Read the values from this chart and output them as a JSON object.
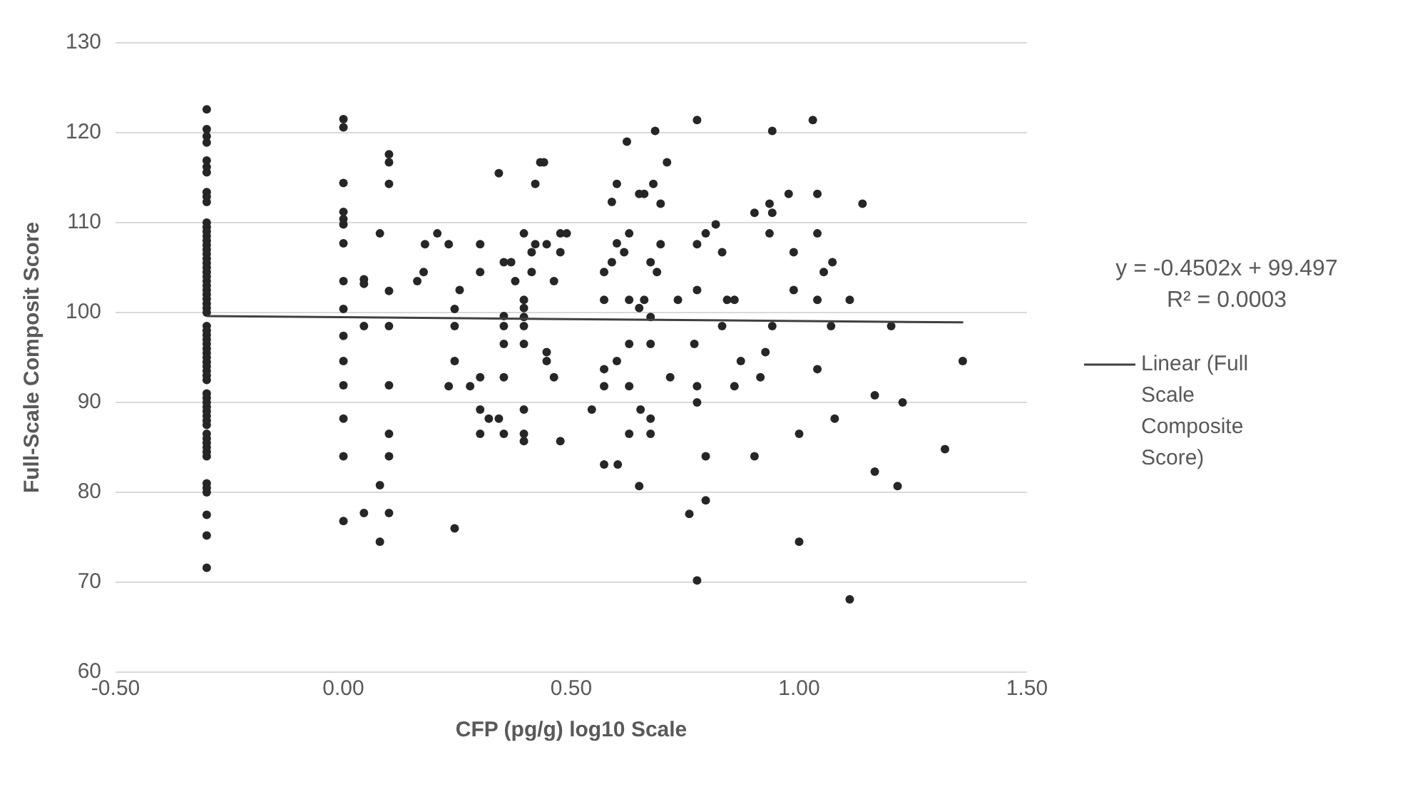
{
  "chart_data": {
    "type": "scatter",
    "xlabel": "CFP (pg/g) log10 Scale",
    "ylabel": "Full-Scale Composit Score",
    "xlim": [
      -0.5,
      1.5
    ],
    "xticks": [
      {
        "value": -0.5,
        "label": "-0.50"
      },
      {
        "value": 0,
        "label": "0.00"
      },
      {
        "value": 0.5,
        "label": "0.50"
      },
      {
        "value": 1,
        "label": "1.00"
      },
      {
        "value": 1.5,
        "label": "1.50"
      }
    ],
    "ylim": [
      60,
      130
    ],
    "yticks": [
      60,
      70,
      80,
      90,
      100,
      110,
      120,
      130
    ],
    "grid": "y",
    "legend": "right",
    "annotations": [
      "y = -0.4502x + 99.497",
      "R² = 0.0003"
    ],
    "series": [
      {
        "type": "scatter",
        "color": "#262626",
        "marker": "circle",
        "x": [
          -0.3,
          -0.3,
          -0.3,
          -0.3,
          -0.3,
          -0.3,
          -0.3,
          -0.3,
          -0.3,
          -0.3,
          -0.3,
          -0.3,
          -0.3,
          -0.3,
          -0.3,
          -0.3,
          -0.3,
          -0.3,
          -0.3,
          -0.3,
          -0.3,
          -0.3,
          -0.3,
          -0.3,
          -0.3,
          -0.3,
          -0.3,
          -0.3,
          -0.3,
          -0.3,
          -0.3,
          -0.3,
          -0.3,
          -0.3,
          -0.3,
          -0.3,
          -0.3,
          -0.3,
          -0.3,
          -0.3,
          -0.3,
          -0.3,
          -0.3,
          -0.3,
          -0.3,
          -0.3,
          -0.3,
          -0.3,
          -0.3,
          -0.3,
          -0.3,
          -0.3,
          -0.3,
          -0.3,
          -0.3,
          -0.3,
          -0.3,
          -0.3,
          -0.3,
          -0.3,
          -0.3,
          -0.3,
          -0.3,
          -0.3,
          0,
          0,
          0,
          0,
          0,
          0,
          0,
          0,
          0,
          0,
          0,
          0,
          0,
          0,
          0,
          0.045,
          0.045,
          0.045,
          0.045,
          0.08,
          0.08,
          0.08,
          0.1,
          0.1,
          0.1,
          0.1,
          0.1,
          0.1,
          0.1,
          0.1,
          0.1,
          0.162,
          0.176,
          0.179,
          0.206,
          0.231,
          0.231,
          0.244,
          0.244,
          0.244,
          0.244,
          0.255,
          0.278,
          0.3,
          0.3,
          0.3,
          0.3,
          0.3,
          0.319,
          0.341,
          0.341,
          0.352,
          0.368,
          0.352,
          0.352,
          0.352,
          0.352,
          0.352,
          0.377,
          0.396,
          0.396,
          0.396,
          0.396,
          0.396,
          0.396,
          0.396,
          0.396,
          0.396,
          0.413,
          0.413,
          0.421,
          0.421,
          0.432,
          0.44,
          0.446,
          0.446,
          0.446,
          0.462,
          0.462,
          0.476,
          0.476,
          0.476,
          0.49,
          0.545,
          0.572,
          0.572,
          0.572,
          0.572,
          0.572,
          0.589,
          0.589,
          0.6,
          0.6,
          0.6,
          0.602,
          0.616,
          0.622,
          0.627,
          0.627,
          0.627,
          0.627,
          0.627,
          0.649,
          0.649,
          0.649,
          0.66,
          0.66,
          0.652,
          0.674,
          0.674,
          0.674,
          0.674,
          0.674,
          0.68,
          0.684,
          0.688,
          0.696,
          0.696,
          0.71,
          0.717,
          0.734,
          0.759,
          0.77,
          0.776,
          0.776,
          0.776,
          0.776,
          0.776,
          0.776,
          0.795,
          0.795,
          0.795,
          0.817,
          0.831,
          0.831,
          0.842,
          0.858,
          0.858,
          0.872,
          0.902,
          0.902,
          0.915,
          0.926,
          0.935,
          0.935,
          0.941,
          0.941,
          0.941,
          0.977,
          0.988,
          0.988,
          1,
          1,
          1.03,
          1.04,
          1.04,
          1.04,
          1.04,
          1.054,
          1.073,
          1.07,
          1.078,
          1.111,
          1.111,
          1.139,
          1.166,
          1.166,
          1.202,
          1.216,
          1.227,
          1.32,
          1.359
        ],
        "values": [
          122.6,
          120.4,
          119.6,
          118.9,
          116.9,
          116.2,
          115.6,
          113.4,
          112.9,
          112.3,
          110,
          109.5,
          109,
          108.5,
          108,
          107.5,
          107,
          106.5,
          106,
          105.5,
          105,
          104.5,
          104,
          103.5,
          103,
          102.5,
          102,
          101.5,
          101,
          100.5,
          100,
          98.5,
          98,
          97.5,
          97,
          96.5,
          96,
          95.5,
          95,
          94.5,
          94,
          93.5,
          93,
          92.5,
          91,
          90.5,
          90,
          89.5,
          89,
          88.5,
          88,
          87.5,
          86.5,
          86,
          85.5,
          85,
          84.5,
          84,
          81,
          80.5,
          80,
          77.5,
          75.2,
          71.6,
          121.5,
          120.6,
          114.4,
          111.2,
          110.4,
          109.8,
          107.7,
          103.5,
          100.4,
          97.4,
          94.6,
          91.9,
          88.2,
          84,
          76.8,
          103.7,
          103.2,
          98.5,
          77.7,
          108.8,
          80.8,
          74.5,
          117.6,
          116.7,
          114.3,
          102.4,
          98.5,
          91.9,
          86.5,
          84,
          77.7,
          103.5,
          104.5,
          107.6,
          108.8,
          107.6,
          91.8,
          100.4,
          98.5,
          94.6,
          76,
          102.5,
          91.8,
          107.6,
          104.5,
          92.8,
          89.2,
          86.5,
          88.2,
          88.2,
          115.5,
          105.6,
          105.6,
          99.6,
          98.5,
          96.5,
          92.8,
          86.5,
          103.5,
          108.8,
          101.4,
          100.5,
          99.5,
          98.5,
          96.5,
          89.2,
          86.5,
          85.7,
          106.7,
          104.5,
          107.6,
          114.3,
          116.7,
          116.7,
          107.6,
          95.6,
          94.6,
          103.5,
          92.8,
          108.8,
          106.7,
          85.7,
          108.8,
          89.2,
          104.5,
          101.4,
          93.7,
          91.8,
          83.1,
          105.6,
          112.3,
          107.7,
          114.3,
          94.6,
          83.1,
          106.7,
          119,
          108.8,
          101.4,
          96.5,
          91.8,
          86.5,
          113.2,
          100.5,
          80.7,
          113.2,
          101.4,
          89.2,
          105.6,
          99.5,
          96.5,
          88.2,
          86.5,
          114.3,
          120.2,
          104.5,
          107.6,
          112.1,
          116.7,
          92.8,
          101.4,
          77.6,
          96.5,
          121.4,
          107.6,
          102.5,
          91.8,
          90,
          70.2,
          108.8,
          84,
          79.1,
          109.8,
          106.7,
          98.5,
          101.4,
          101.4,
          91.8,
          94.6,
          111.1,
          84,
          92.8,
          95.6,
          112.1,
          108.8,
          111.1,
          120.2,
          98.5,
          113.2,
          106.7,
          102.5,
          86.5,
          74.5,
          121.4,
          113.2,
          108.8,
          101.4,
          93.7,
          104.5,
          105.6,
          98.5,
          88.2,
          101.4,
          68.1,
          112.1,
          90.8,
          82.3,
          98.5,
          80.7,
          90,
          84.8,
          94.6
        ]
      },
      {
        "type": "line",
        "name": "Linear (Full Scale Composite Score)",
        "color": "#404040",
        "marker": "none",
        "line_style": "solid",
        "x": [
          -0.3,
          1.36
        ],
        "values": [
          99.6,
          98.9
        ]
      }
    ]
  }
}
